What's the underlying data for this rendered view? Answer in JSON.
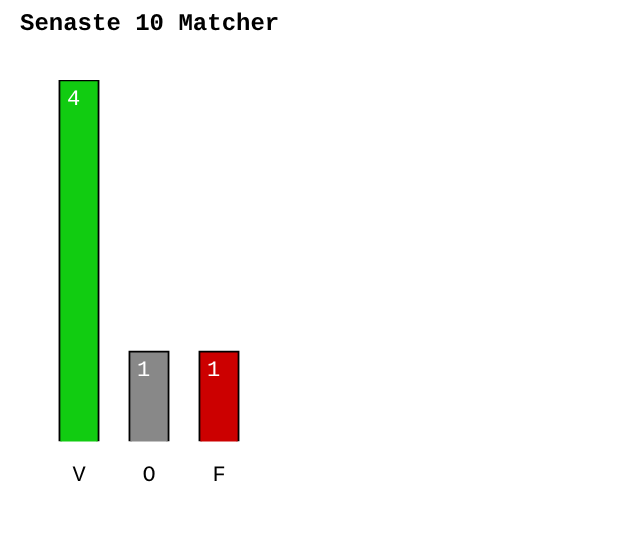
{
  "chart_data": {
    "type": "bar",
    "title": "Senaste 10 Matcher",
    "categories": [
      "V",
      "O",
      "F"
    ],
    "values": [
      4,
      1,
      1
    ],
    "colors": [
      "#11cc11",
      "#888888",
      "#cc0000"
    ],
    "data_labels": true,
    "grid": false,
    "legend": false,
    "tick_labels": "x"
  }
}
